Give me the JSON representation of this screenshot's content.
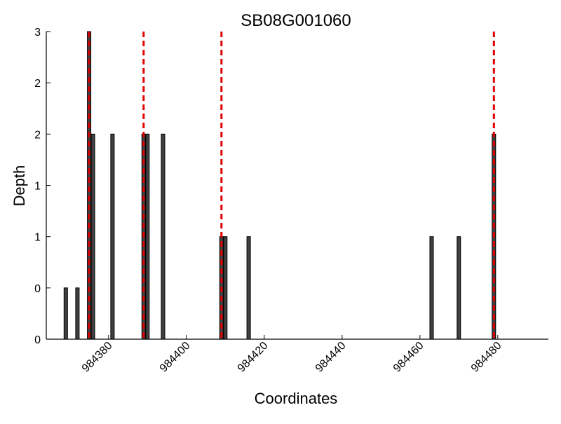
{
  "chart_data": {
    "type": "bar",
    "title": "SB08G001060",
    "xlabel": "Coordinates",
    "ylabel": "Depth",
    "xlim": [
      984364,
      984493
    ],
    "ylim": [
      0,
      3
    ],
    "x_ticks": [
      984380,
      984400,
      984420,
      984440,
      984460,
      984480
    ],
    "x_tick_labels": [
      "984380",
      "984400",
      "984420",
      "984440",
      "984460",
      "984480"
    ],
    "y_ticks": [
      0,
      0.5,
      1,
      1.5,
      2,
      2.5,
      3
    ],
    "y_tick_labels": [
      "0",
      "0",
      "1",
      "1",
      "2",
      "2",
      "3"
    ],
    "series": [
      {
        "x": [
          984369,
          984372,
          984375,
          984376,
          984381,
          984389,
          984390,
          984394,
          984409,
          984410,
          984416,
          984463,
          984470,
          984479
        ],
        "values": [
          0.5,
          0.5,
          3,
          2,
          2,
          2,
          2,
          2,
          1,
          1,
          1,
          1,
          1,
          2
        ]
      }
    ],
    "markers": [
      984375,
      984389,
      984409,
      984479
    ],
    "colors": {
      "bar": "#404040",
      "marker": "#e00000",
      "axis": "#000000"
    },
    "grid": false
  }
}
